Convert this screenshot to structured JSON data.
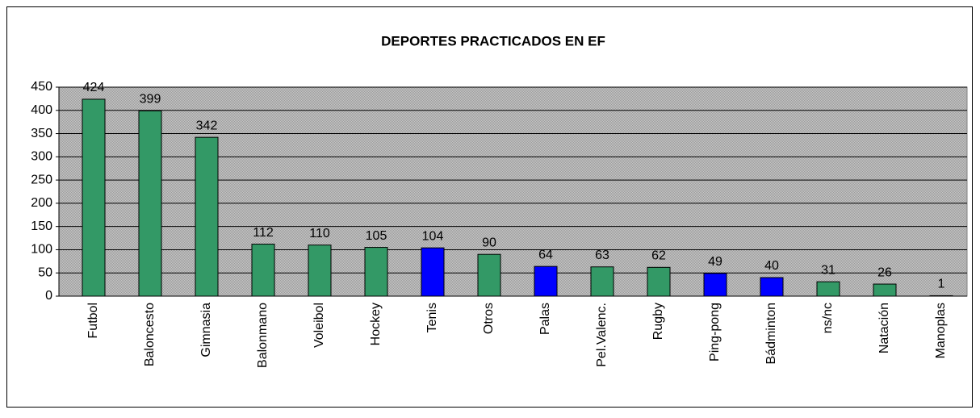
{
  "chart_data": {
    "type": "bar",
    "title": "DEPORTES PRACTICADOS EN EF",
    "categories": [
      "Futbol",
      "Baloncesto",
      "Gimnasia",
      "Balonmano",
      "Voleibol",
      "Hockey",
      "Tenis",
      "Otros",
      "Palas",
      "Pel.Valenc.",
      "Rugby",
      "Ping-pong",
      "Bádminton",
      "ns/nc",
      "Natación",
      "Manoplas"
    ],
    "values": [
      424,
      399,
      342,
      112,
      110,
      105,
      104,
      90,
      64,
      63,
      62,
      49,
      40,
      31,
      26,
      1
    ],
    "colors": [
      "#339966",
      "#339966",
      "#339966",
      "#339966",
      "#339966",
      "#339966",
      "#0000ff",
      "#339966",
      "#0000ff",
      "#339966",
      "#339966",
      "#0000ff",
      "#0000ff",
      "#339966",
      "#339966",
      "#339966"
    ],
    "ylim": [
      0,
      450
    ],
    "yticks": [
      0,
      50,
      100,
      150,
      200,
      250,
      300,
      350,
      400,
      450
    ],
    "grid": true
  }
}
